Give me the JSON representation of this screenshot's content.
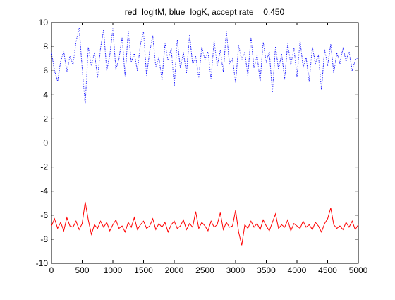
{
  "chart_data": {
    "type": "line",
    "title": "red=logitM, blue=logK, accept rate = 0.450",
    "xlabel": "",
    "ylabel": "",
    "xlim": [
      0,
      5000
    ],
    "ylim": [
      -10,
      10
    ],
    "xticks": [
      0,
      500,
      1000,
      1500,
      2000,
      2500,
      3000,
      3500,
      4000,
      4500,
      5000
    ],
    "yticks": [
      -10,
      -8,
      -6,
      -4,
      -2,
      0,
      2,
      4,
      6,
      8,
      10
    ],
    "xtick_labels": [
      "0",
      "500",
      "1000",
      "1500",
      "2000",
      "2500",
      "3000",
      "3500",
      "4000",
      "4500",
      "5000"
    ],
    "ytick_labels": [
      "-10",
      "-8",
      "-6",
      "-4",
      "-2",
      "0",
      "2",
      "4",
      "6",
      "8",
      "10"
    ],
    "grid": false,
    "legend": "none",
    "series": [
      {
        "color": "#0000ff",
        "style": "dotted",
        "x": [
          0,
          50,
          100,
          150,
          200,
          250,
          300,
          350,
          400,
          450,
          500,
          550,
          600,
          650,
          700,
          750,
          800,
          850,
          900,
          950,
          1000,
          1050,
          1100,
          1150,
          1200,
          1250,
          1300,
          1350,
          1400,
          1450,
          1500,
          1550,
          1600,
          1650,
          1700,
          1750,
          1800,
          1850,
          1900,
          1950,
          2000,
          2050,
          2100,
          2150,
          2200,
          2250,
          2300,
          2350,
          2400,
          2450,
          2500,
          2550,
          2600,
          2650,
          2700,
          2750,
          2800,
          2850,
          2900,
          2950,
          3000,
          3050,
          3100,
          3150,
          3200,
          3250,
          3300,
          3350,
          3400,
          3450,
          3500,
          3550,
          3600,
          3650,
          3700,
          3750,
          3800,
          3850,
          3900,
          3950,
          4000,
          4050,
          4100,
          4150,
          4200,
          4250,
          4300,
          4350,
          4400,
          4450,
          4500,
          4550,
          4600,
          4650,
          4700,
          4750,
          4800,
          4850,
          4900,
          4950,
          5000
        ],
        "values": [
          7.5,
          6.0,
          5.1,
          6.8,
          7.6,
          5.9,
          7.2,
          6.5,
          8.4,
          9.6,
          6.2,
          3.2,
          8.0,
          6.4,
          7.5,
          5.4,
          7.9,
          9.4,
          6.0,
          7.3,
          9.5,
          6.1,
          7.0,
          8.8,
          5.5,
          9.3,
          6.7,
          7.4,
          6.0,
          8.2,
          9.2,
          5.6,
          7.6,
          8.9,
          6.3,
          7.1,
          5.2,
          8.3,
          6.8,
          7.9,
          4.7,
          8.6,
          6.2,
          7.5,
          5.8,
          9.0,
          6.5,
          7.2,
          5.4,
          8.0,
          6.9,
          7.6,
          5.3,
          8.5,
          6.4,
          7.7,
          5.9,
          9.3,
          6.6,
          7.0,
          5.0,
          8.1,
          6.9,
          7.5,
          5.6,
          8.8,
          6.2,
          7.3,
          5.1,
          8.4,
          6.7,
          7.6,
          4.2,
          8.0,
          6.1,
          7.4,
          5.3,
          8.3,
          6.5,
          7.9,
          5.5,
          8.5,
          6.3,
          7.1,
          5.1,
          8.0,
          6.6,
          7.3,
          4.4,
          7.8,
          6.4,
          8.2,
          5.8,
          7.5,
          6.6,
          7.9,
          6.8,
          7.6,
          6.0,
          6.9,
          7.1
        ]
      },
      {
        "color": "#ff0000",
        "style": "solid",
        "x": [
          0,
          50,
          100,
          150,
          200,
          250,
          300,
          350,
          400,
          450,
          500,
          550,
          600,
          650,
          700,
          750,
          800,
          850,
          900,
          950,
          1000,
          1050,
          1100,
          1150,
          1200,
          1250,
          1300,
          1350,
          1400,
          1450,
          1500,
          1550,
          1600,
          1650,
          1700,
          1750,
          1800,
          1850,
          1900,
          1950,
          2000,
          2050,
          2100,
          2150,
          2200,
          2250,
          2300,
          2350,
          2400,
          2450,
          2500,
          2550,
          2600,
          2650,
          2700,
          2750,
          2800,
          2850,
          2900,
          2950,
          3000,
          3050,
          3100,
          3150,
          3200,
          3250,
          3300,
          3350,
          3400,
          3450,
          3500,
          3550,
          3600,
          3650,
          3700,
          3750,
          3800,
          3850,
          3900,
          3950,
          4000,
          4050,
          4100,
          4150,
          4200,
          4250,
          4300,
          4350,
          4400,
          4450,
          4500,
          4550,
          4600,
          4650,
          4700,
          4750,
          4800,
          4850,
          4900,
          4950,
          5000
        ],
        "values": [
          -6.9,
          -6.3,
          -7.1,
          -6.6,
          -7.3,
          -6.2,
          -6.9,
          -7.0,
          -6.5,
          -7.2,
          -6.7,
          -4.9,
          -6.4,
          -7.6,
          -6.8,
          -7.1,
          -6.5,
          -7.0,
          -6.6,
          -7.3,
          -6.8,
          -6.4,
          -7.1,
          -6.9,
          -7.4,
          -6.6,
          -7.0,
          -6.2,
          -7.2,
          -6.8,
          -6.5,
          -7.1,
          -6.9,
          -6.3,
          -7.2,
          -6.7,
          -7.0,
          -6.6,
          -7.4,
          -6.8,
          -6.5,
          -7.1,
          -6.9,
          -6.4,
          -7.2,
          -6.7,
          -7.0,
          -5.7,
          -7.1,
          -6.6,
          -6.9,
          -7.3,
          -6.5,
          -7.0,
          -6.8,
          -5.8,
          -7.2,
          -6.6,
          -7.0,
          -6.9,
          -5.6,
          -7.4,
          -8.5,
          -6.8,
          -7.1,
          -6.5,
          -7.0,
          -6.7,
          -7.2,
          -6.4,
          -6.9,
          -7.3,
          -6.6,
          -5.9,
          -7.1,
          -6.8,
          -7.0,
          -6.4,
          -7.3,
          -6.7,
          -6.9,
          -7.1,
          -6.5,
          -7.0,
          -6.8,
          -7.2,
          -6.6,
          -6.9,
          -7.4,
          -6.7,
          -6.3,
          -5.4,
          -6.8,
          -7.1,
          -6.9,
          -7.2,
          -6.6,
          -7.0,
          -6.5,
          -7.2,
          -6.8
        ]
      }
    ]
  }
}
